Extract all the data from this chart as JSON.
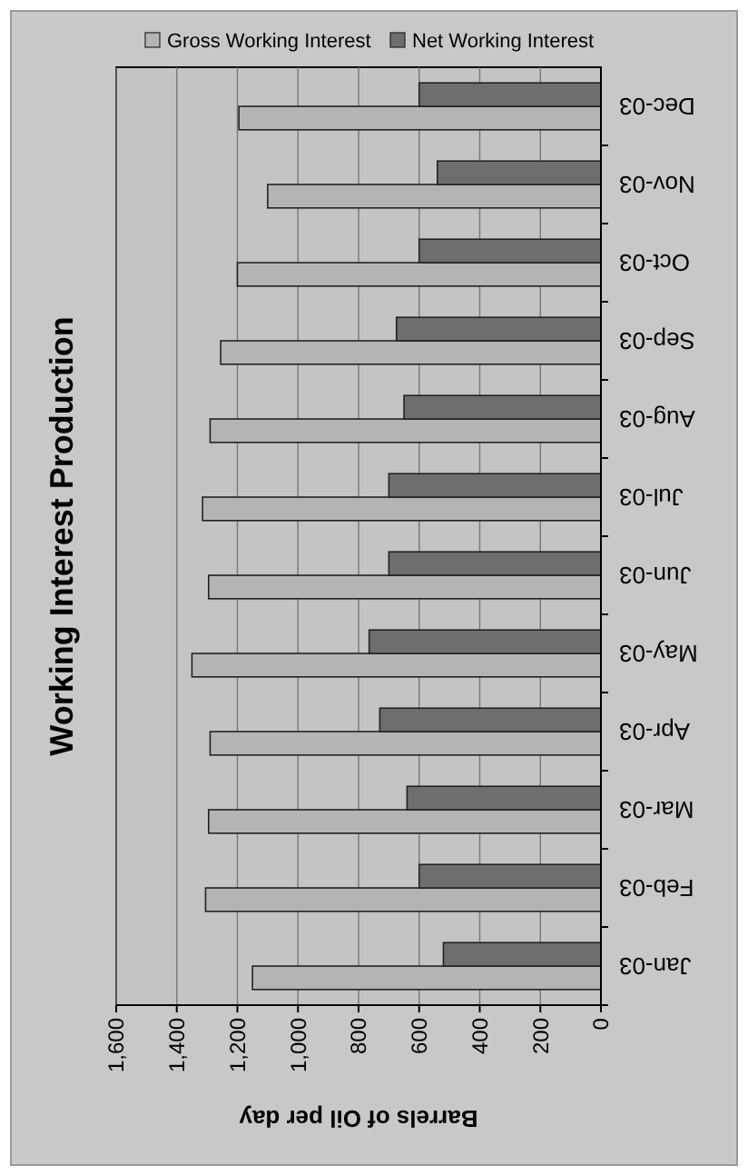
{
  "chart_data": {
    "type": "bar",
    "orientation": "horizontal",
    "title": "Working Interest Production",
    "xlabel": "Barrels of Oil per day",
    "categories": [
      "Dec-03",
      "Nov-03",
      "Oct-03",
      "Sep-03",
      "Aug-03",
      "Jul-03",
      "Jun-03",
      "May-03",
      "Apr-03",
      "Mar-03",
      "Feb-03",
      "Jan-03"
    ],
    "series": [
      {
        "name": "Gross Working Interest",
        "color": "#b4b4b4",
        "values": [
          1195,
          1100,
          1200,
          1255,
          1290,
          1315,
          1295,
          1350,
          1290,
          1295,
          1305,
          1150
        ]
      },
      {
        "name": "Net Working Interest",
        "color": "#6e6e6e",
        "values": [
          600,
          540,
          600,
          675,
          650,
          700,
          700,
          765,
          730,
          640,
          600,
          520
        ]
      }
    ],
    "xlim": [
      1600,
      0
    ],
    "xticks": [
      {
        "value": 1600,
        "label": "1,600"
      },
      {
        "value": 1400,
        "label": "1,400"
      },
      {
        "value": 1200,
        "label": "1,200"
      },
      {
        "value": 1000,
        "label": "1,000"
      },
      {
        "value": 800,
        "label": "800"
      },
      {
        "value": 600,
        "label": "600"
      },
      {
        "value": 400,
        "label": "400"
      },
      {
        "value": 200,
        "label": "200"
      },
      {
        "value": 0,
        "label": "0"
      }
    ],
    "grid": "x",
    "legend": "top"
  }
}
